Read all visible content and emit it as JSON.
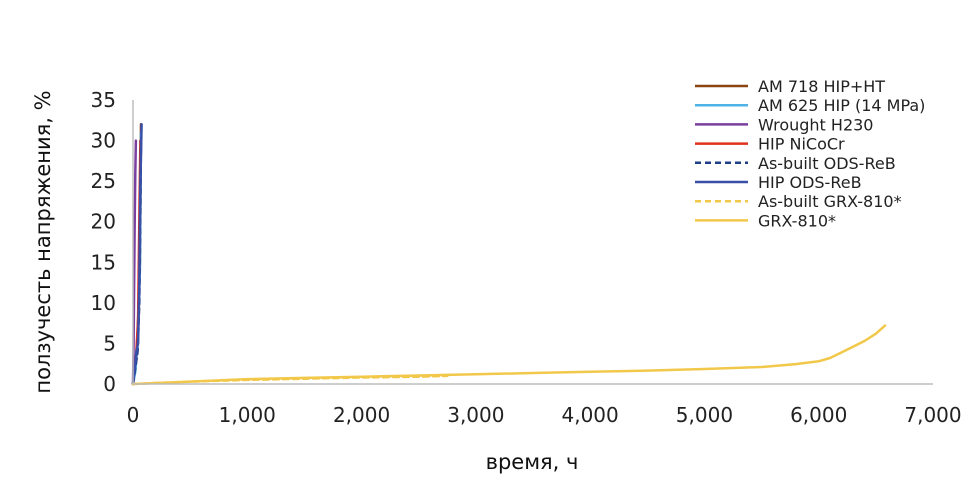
{
  "chart_data": {
    "type": "line",
    "title": "",
    "xlabel": "время, ч",
    "ylabel": "ползучесть напряжения, %",
    "xlim": [
      0,
      7000
    ],
    "ylim": [
      0,
      35
    ],
    "x_ticks": [
      0,
      1000,
      2000,
      3000,
      4000,
      5000,
      6000,
      7000
    ],
    "x_tick_labels": [
      "0",
      "1,000",
      "2,000",
      "3,000",
      "4,000",
      "5,000",
      "6,000",
      "7,000"
    ],
    "y_ticks": [
      0,
      5,
      10,
      15,
      20,
      25,
      30,
      35
    ],
    "y_tick_labels": [
      "0",
      "5",
      "10",
      "15",
      "20",
      "25",
      "30",
      "35"
    ],
    "grid": false,
    "legend_position": "top-right",
    "series": [
      {
        "name": "AM 718 HIP+HT",
        "color": "#8B4513",
        "dash": "solid",
        "x": [
          0,
          20,
          40,
          60,
          70
        ],
        "y": [
          0,
          2,
          6,
          15,
          32
        ]
      },
      {
        "name": "AM 625 HIP (14 MPa)",
        "color": "#4FB3E8",
        "dash": "solid",
        "x": [
          0,
          20,
          40,
          60,
          70
        ],
        "y": [
          0,
          1.5,
          5,
          14,
          31
        ]
      },
      {
        "name": "Wrought H230",
        "color": "#7B3FA0",
        "dash": "solid",
        "x": [
          0,
          5,
          10,
          15,
          20,
          25
        ],
        "y": [
          0,
          5,
          12,
          20,
          26,
          30
        ]
      },
      {
        "name": "HIP NiCoCr",
        "color": "#E0301E",
        "dash": "solid",
        "x": [
          0,
          15,
          30,
          45,
          55,
          65
        ],
        "y": [
          0,
          2,
          4,
          8,
          20,
          30
        ]
      },
      {
        "name": "As-built ODS-ReB",
        "color": "#1F3C88",
        "dash": "dashed",
        "x": [
          0,
          20,
          40,
          55,
          65,
          70
        ],
        "y": [
          0,
          2,
          4,
          10,
          22,
          30
        ]
      },
      {
        "name": "HIP ODS-ReB",
        "color": "#3A4FA8",
        "dash": "solid",
        "x": [
          0,
          15,
          30,
          45,
          55,
          65,
          75
        ],
        "y": [
          0,
          2,
          4,
          5,
          12,
          25,
          32
        ]
      },
      {
        "name": "As-built GRX-810*",
        "color": "#F2C84B",
        "dash": "dashed",
        "x": [
          0,
          500,
          1000,
          1500,
          2000,
          2500,
          2750
        ],
        "y": [
          0,
          0.3,
          0.5,
          0.65,
          0.8,
          0.9,
          1.0
        ]
      },
      {
        "name": "GRX-810*",
        "color": "#F2C84B",
        "dash": "solid",
        "x": [
          0,
          500,
          1000,
          1500,
          2000,
          2500,
          3000,
          3500,
          4000,
          4500,
          5000,
          5500,
          5800,
          6000,
          6100,
          6200,
          6300,
          6400,
          6500,
          6580
        ],
        "y": [
          0,
          0.3,
          0.6,
          0.75,
          0.9,
          1.05,
          1.2,
          1.35,
          1.5,
          1.65,
          1.85,
          2.1,
          2.45,
          2.8,
          3.2,
          3.9,
          4.6,
          5.3,
          6.2,
          7.2
        ]
      }
    ]
  }
}
